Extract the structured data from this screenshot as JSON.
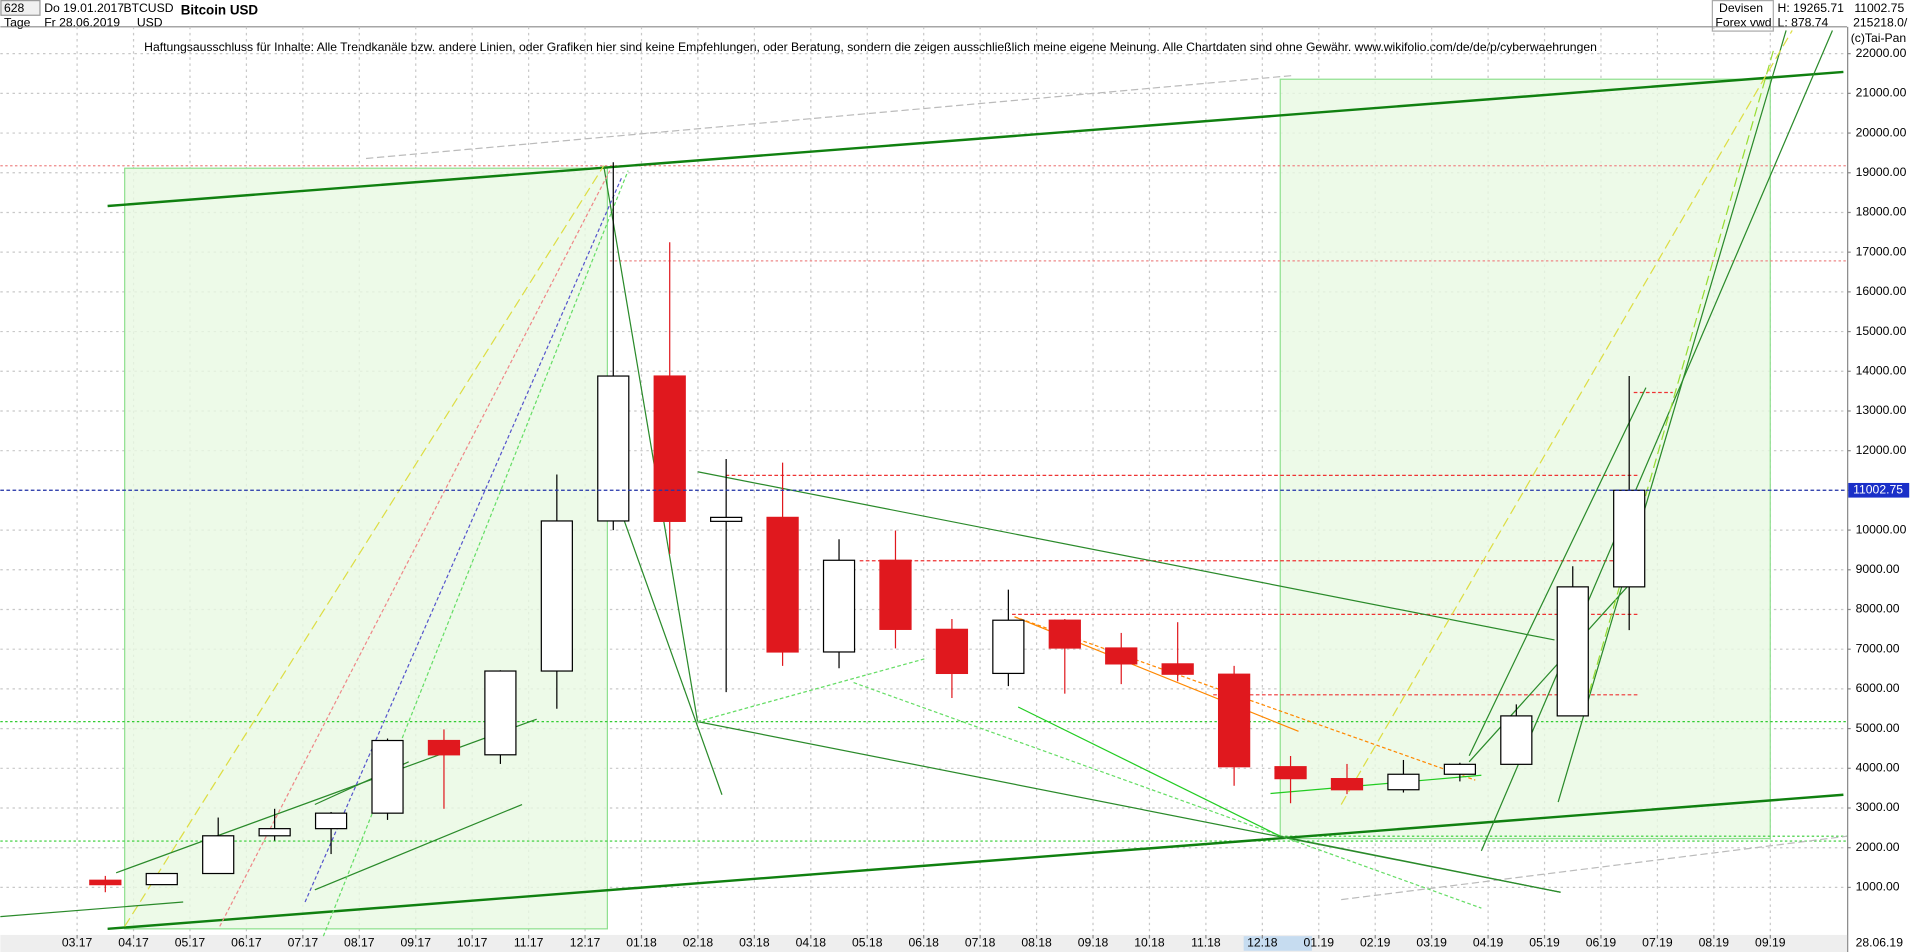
{
  "header": {
    "count": "628",
    "period": "Tage",
    "start_date": "Do 19.01.2017",
    "end_date": "Fr 28.06.2019",
    "symbol": "BTCUSD",
    "currency": "USD",
    "market": "Devisen",
    "source": "Forex vwd",
    "high": "H: 19265.71",
    "low": "L: 878.74",
    "volume": "215218.0/",
    "copyright": "(c)Tai-Pan"
  },
  "chart_data": {
    "type": "candlestick",
    "title": "Bitcoin USD",
    "annotation": "Haftungsausschluss für Inhalte: Alle Trendkanäle bzw. andere Linien, oder Grafiken hier sind keine Empfehlungen, oder Beratung, sondern die zeigen ausschließlich meine eigene Meinung. Alle Chartdaten sind ohne Gewähr.  www.wikifolio.com/de/de/p/cyberwaehrungen",
    "current_price": 11002.75,
    "last_date": "28.06.19",
    "x": [
      0.5,
      1.5,
      2.5,
      3.5,
      4.5,
      5.5,
      6.5,
      7.5,
      8.5,
      9.5,
      10.5,
      11.5,
      12.5,
      13.5,
      14.5,
      15.5,
      16.5,
      17.5,
      18.5,
      19.5,
      20.5,
      21.5,
      22.5,
      23.5,
      24.5,
      25.5,
      26.5,
      27.5
    ],
    "open": [
      1180,
      1070,
      1350,
      2300,
      2480,
      2870,
      4700,
      4340,
      6450,
      10230,
      13880,
      10220,
      10320,
      6930,
      9240,
      7500,
      6390,
      7730,
      7030,
      6630,
      6370,
      4040,
      3740,
      3460,
      3850,
      4100,
      5320,
      8570
    ],
    "high": [
      1290,
      1350,
      2760,
      2980,
      2900,
      4750,
      4980,
      6470,
      11400,
      19265.71,
      17250,
      11790,
      11700,
      9770,
      9990,
      7760,
      8500,
      7760,
      7410,
      7680,
      6580,
      4310,
      4110,
      4210,
      4140,
      5610,
      9090,
      13880
    ],
    "low": [
      878.74,
      1060,
      1350,
      2180,
      1840,
      2700,
      2980,
      4110,
      5500,
      10000,
      9400,
      5920,
      6580,
      6520,
      7020,
      5770,
      6070,
      5880,
      6120,
      6190,
      3560,
      3120,
      3350,
      3390,
      3670,
      4100,
      5320,
      7480
    ],
    "close": [
      1070,
      1350,
      2300,
      2480,
      2870,
      4700,
      4340,
      6450,
      10230,
      13880,
      10220,
      10320,
      6930,
      9240,
      7500,
      6390,
      7730,
      7030,
      6630,
      6370,
      4040,
      3740,
      3460,
      3850,
      4100,
      5320,
      8570,
      11002.75
    ],
    "up_color": "#000000",
    "down_color": "#e0181e",
    "grid": true,
    "xlim": [
      -1.36,
      31.36
    ],
    "xticks": [
      {
        "value": 0,
        "label": "03.17"
      },
      {
        "value": 1,
        "label": "04.17"
      },
      {
        "value": 2,
        "label": "05.17"
      },
      {
        "value": 3,
        "label": "06.17"
      },
      {
        "value": 4,
        "label": "07.17"
      },
      {
        "value": 5,
        "label": "08.17"
      },
      {
        "value": 6,
        "label": "09.17"
      },
      {
        "value": 7,
        "label": "10.17"
      },
      {
        "value": 8,
        "label": "11.17"
      },
      {
        "value": 9,
        "label": "12.17"
      },
      {
        "value": 10,
        "label": "01.18"
      },
      {
        "value": 11,
        "label": "02.18"
      },
      {
        "value": 12,
        "label": "03.18"
      },
      {
        "value": 13,
        "label": "04.18"
      },
      {
        "value": 14,
        "label": "05.18"
      },
      {
        "value": 15,
        "label": "06.18"
      },
      {
        "value": 16,
        "label": "07.18"
      },
      {
        "value": 17,
        "label": "08.18"
      },
      {
        "value": 18,
        "label": "09.18"
      },
      {
        "value": 19,
        "label": "10.18"
      },
      {
        "value": 20,
        "label": "11.18"
      },
      {
        "value": 21,
        "label": "12.18"
      },
      {
        "value": 22,
        "label": "01.19"
      },
      {
        "value": 23,
        "label": "02.19"
      },
      {
        "value": 24,
        "label": "03.19"
      },
      {
        "value": 25,
        "label": "04.19"
      },
      {
        "value": 26,
        "label": "05.19"
      },
      {
        "value": 27,
        "label": "06.19"
      },
      {
        "value": 28,
        "label": "07.19"
      },
      {
        "value": 29,
        "label": "08.19"
      },
      {
        "value": 30,
        "label": "09.19"
      }
    ],
    "ylim": [
      -197,
      22676
    ],
    "yticks": [
      {
        "value": 1000,
        "label": "1000.00"
      },
      {
        "value": 2000,
        "label": "2000.00"
      },
      {
        "value": 3000,
        "label": "3000.00"
      },
      {
        "value": 4000,
        "label": "4000.00"
      },
      {
        "value": 5000,
        "label": "5000.00"
      },
      {
        "value": 6000,
        "label": "6000.00"
      },
      {
        "value": 7000,
        "label": "7000.00"
      },
      {
        "value": 8000,
        "label": "8000.00"
      },
      {
        "value": 9000,
        "label": "9000.00"
      },
      {
        "value": 10000,
        "label": "10000.00"
      },
      {
        "value": 11000,
        "label": "11000.00"
      },
      {
        "value": 12000,
        "label": "12000.00"
      },
      {
        "value": 13000,
        "label": "13000.00"
      },
      {
        "value": 14000,
        "label": "14000.00"
      },
      {
        "value": 15000,
        "label": "15000.00"
      },
      {
        "value": 16000,
        "label": "16000.00"
      },
      {
        "value": 17000,
        "label": "17000.00"
      },
      {
        "value": 18000,
        "label": "18000.00"
      },
      {
        "value": 19000,
        "label": "19000.00"
      },
      {
        "value": 20000,
        "label": "20000.00"
      },
      {
        "value": 21000,
        "label": "21000.00"
      },
      {
        "value": 22000,
        "label": "22000.00"
      }
    ]
  }
}
